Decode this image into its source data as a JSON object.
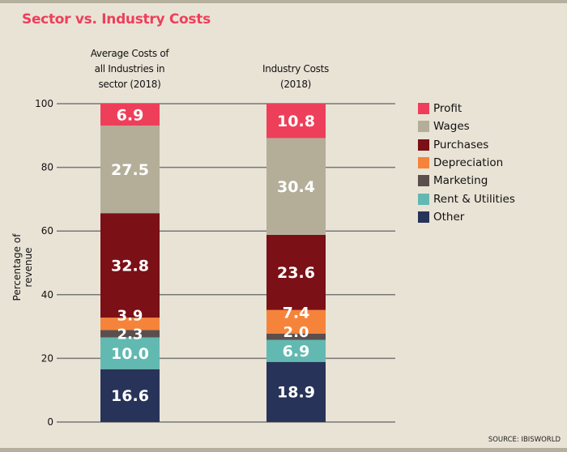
{
  "chart_data": {
    "type": "bar",
    "stacked": true,
    "title": "Sector vs. Industry Costs",
    "ylabel": "Percentage of revenue",
    "xlabel": "",
    "ylim": [
      0,
      100
    ],
    "yticks": [
      0,
      20,
      40,
      60,
      80,
      100
    ],
    "grid": true,
    "legend_placement": "right",
    "categories": [
      "Average Costs of all Industries in sector (2018)",
      "Industry Costs (2018)"
    ],
    "category_lines": [
      [
        "Average Costs of",
        "all Industries in",
        "sector (2018)"
      ],
      [
        "Industry Costs",
        "(2018)"
      ]
    ],
    "series": [
      {
        "name": "Other",
        "color": "#283359",
        "values": [
          16.6,
          18.9
        ]
      },
      {
        "name": "Rent & Utilities",
        "color": "#62b9b1",
        "values": [
          10.0,
          6.9
        ]
      },
      {
        "name": "Marketing",
        "color": "#5a4f4d",
        "values": [
          2.3,
          2.0
        ]
      },
      {
        "name": "Depreciation",
        "color": "#f5843a",
        "values": [
          3.9,
          7.4
        ]
      },
      {
        "name": "Purchases",
        "color": "#7b1016",
        "values": [
          32.8,
          23.6
        ]
      },
      {
        "name": "Wages",
        "color": "#b4ae99",
        "values": [
          27.5,
          30.4
        ]
      },
      {
        "name": "Profit",
        "color": "#ee3f5a",
        "values": [
          6.9,
          10.8
        ]
      }
    ],
    "data_labels": [
      [
        "16.6",
        "10.0",
        "2.3",
        "3.9",
        "32.8",
        "27.5",
        "6.9"
      ],
      [
        "18.9",
        "6.9",
        "2.0",
        "7.4",
        "23.6",
        "30.4",
        "10.8"
      ]
    ],
    "legend_order": [
      "Profit",
      "Wages",
      "Purchases",
      "Depreciation",
      "Marketing",
      "Rent & Utilities",
      "Other"
    ],
    "source": "SOURCE: IBISWORLD"
  }
}
